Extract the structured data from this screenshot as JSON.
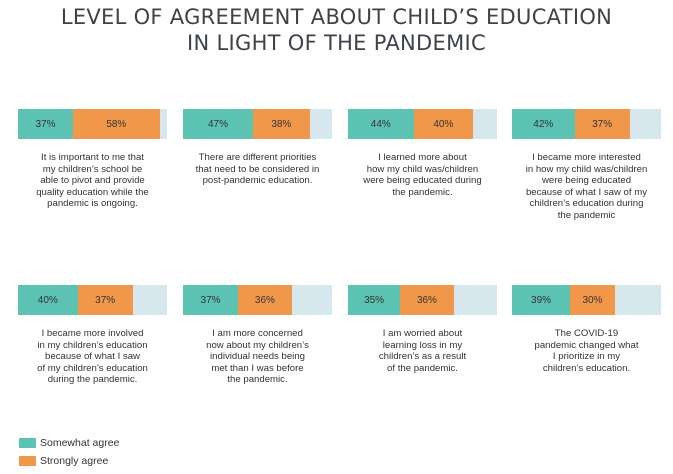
{
  "title_lines": [
    "LEVEL OF AGREEMENT ABOUT CHILD’S EDUCATION",
    "IN LIGHT OF THE PANDEMIC"
  ],
  "colors": {
    "somewhat": "#5cc2b2",
    "strongly": "#f1974a",
    "remainder": "#d6e7ee"
  },
  "legend": {
    "somewhat": "Somewhat agree",
    "strongly": "Strongly agree"
  },
  "chart_data": {
    "type": "bar",
    "orientation": "horizontal-stacked",
    "series_names": [
      "Somewhat agree",
      "Strongly agree"
    ],
    "items": [
      {
        "somewhat": 37,
        "strongly": 58,
        "somewhat_label": "37%",
        "strongly_label": "58%",
        "caption": [
          "It is important to me that",
          "my children’s school be",
          "able to pivot and provide",
          "quality education while the",
          "pandemic is ongoing."
        ]
      },
      {
        "somewhat": 47,
        "strongly": 38,
        "somewhat_label": "47%",
        "strongly_label": "38%",
        "caption": [
          "There are different priorities",
          "that need to be considered in",
          "post-pandemic education."
        ]
      },
      {
        "somewhat": 44,
        "strongly": 40,
        "somewhat_label": "44%",
        "strongly_label": "40%",
        "caption": [
          "I learned more about",
          "how my child was/children",
          "were being educated during",
          "the pandemic."
        ]
      },
      {
        "somewhat": 42,
        "strongly": 37,
        "somewhat_label": "42%",
        "strongly_label": "37%",
        "caption": [
          "I became more interested",
          "in how my child was/children",
          "were being educated",
          "because of what I saw of my",
          "children’s education during",
          "the pandemic"
        ]
      },
      {
        "somewhat": 40,
        "strongly": 37,
        "somewhat_label": "40%",
        "strongly_label": "37%",
        "caption": [
          "I became more involved",
          "in my children’s education",
          "because of what I saw",
          "of my children’s education",
          "during the pandemic."
        ]
      },
      {
        "somewhat": 37,
        "strongly": 36,
        "somewhat_label": "37%",
        "strongly_label": "36%",
        "caption": [
          "I am more concerned",
          "now about my children’s",
          "individual needs being",
          "met than I was before",
          "the pandemic."
        ]
      },
      {
        "somewhat": 35,
        "strongly": 36,
        "somewhat_label": "35%",
        "strongly_label": "36%",
        "caption": [
          "I am worried about",
          "learning loss in my",
          "children’s as a result",
          "of the pandemic."
        ]
      },
      {
        "somewhat": 39,
        "strongly": 30,
        "somewhat_label": "39%",
        "strongly_label": "30%",
        "caption": [
          "The COVID-19",
          "pandemic changed what",
          "I prioritize in my",
          "children’s education."
        ]
      }
    ]
  }
}
